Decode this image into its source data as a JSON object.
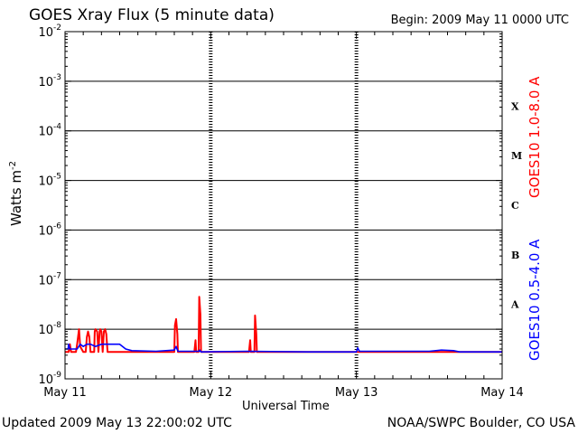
{
  "header": {
    "title": "GOES Xray Flux (5 minute data)",
    "begin": "Begin:  2009 May 11 0000 UTC"
  },
  "footer": {
    "updated": "Updated 2009 May 13 22:00:02 UTC",
    "credit": "NOAA/SWPC Boulder, CO USA"
  },
  "colors": {
    "long": "#ff0000",
    "short": "#0000ff",
    "axis": "#000000"
  },
  "chart_data": {
    "type": "line",
    "title": "GOES Xray Flux (5 minute data)",
    "xlabel": "Universal Time",
    "ylabel": "Watts m",
    "ylabel_sup": "-2",
    "y_scale": "log",
    "ylim": [
      1e-09,
      0.01
    ],
    "xlim": [
      0,
      72
    ],
    "x_unit": "hours since 2009 May 11 0000 UTC",
    "x_ticks": [
      {
        "x": 0,
        "label": "May 11"
      },
      {
        "x": 24,
        "label": "May 12"
      },
      {
        "x": 48,
        "label": "May 13"
      },
      {
        "x": 72,
        "label": "May 14"
      }
    ],
    "y_ticks": [
      {
        "exp": -9,
        "label": "10",
        "sup": "-9"
      },
      {
        "exp": -8,
        "label": "10",
        "sup": "-8"
      },
      {
        "exp": -7,
        "label": "10",
        "sup": "-7"
      },
      {
        "exp": -6,
        "label": "10",
        "sup": "-6"
      },
      {
        "exp": -5,
        "label": "10",
        "sup": "-5"
      },
      {
        "exp": -4,
        "label": "10",
        "sup": "-4"
      },
      {
        "exp": -3,
        "label": "10",
        "sup": "-3"
      },
      {
        "exp": -2,
        "label": "10",
        "sup": "-2"
      }
    ],
    "flare_classes": [
      {
        "label": "A",
        "exp": -7.5
      },
      {
        "label": "B",
        "exp": -6.5
      },
      {
        "label": "C",
        "exp": -5.5
      },
      {
        "label": "M",
        "exp": -4.5
      },
      {
        "label": "X",
        "exp": -3.5
      }
    ],
    "grid": "horizontal lines at each decade from 1e-8 to 1e-3",
    "series": [
      {
        "name": "GOES10 1.0-8.0 A",
        "color": "#ff0000",
        "points": [
          [
            0.0,
            3.5e-09
          ],
          [
            0.6,
            3.5e-09
          ],
          [
            0.8,
            5e-09
          ],
          [
            1.0,
            3.5e-09
          ],
          [
            1.8,
            3.5e-09
          ],
          [
            2.0,
            5e-09
          ],
          [
            2.3,
            1e-08
          ],
          [
            2.5,
            4.5e-09
          ],
          [
            3.0,
            3.5e-09
          ],
          [
            3.4,
            3.5e-09
          ],
          [
            3.6,
            7e-09
          ],
          [
            3.8,
            9e-09
          ],
          [
            4.0,
            7e-09
          ],
          [
            4.2,
            3.5e-09
          ],
          [
            4.8,
            3.5e-09
          ],
          [
            4.9,
            9e-09
          ],
          [
            5.0,
            1e-08
          ],
          [
            5.3,
            9e-09
          ],
          [
            5.5,
            3.5e-09
          ],
          [
            5.7,
            9e-09
          ],
          [
            5.8,
            1e-08
          ],
          [
            6.0,
            9e-09
          ],
          [
            6.2,
            3.5e-09
          ],
          [
            6.4,
            9e-09
          ],
          [
            6.6,
            1e-08
          ],
          [
            6.8,
            8e-09
          ],
          [
            7.0,
            3.5e-09
          ],
          [
            18.0,
            3.5e-09
          ],
          [
            18.1,
            1.2e-08
          ],
          [
            18.3,
            1.6e-08
          ],
          [
            18.5,
            8e-09
          ],
          [
            18.6,
            3.5e-09
          ],
          [
            21.0,
            3.5e-09
          ],
          [
            21.3,
            3.5e-09
          ],
          [
            21.5,
            6e-09
          ],
          [
            21.6,
            3.5e-09
          ],
          [
            22.0,
            3.5e-09
          ],
          [
            22.1,
            4.5e-08
          ],
          [
            22.3,
            2e-08
          ],
          [
            22.4,
            3.5e-09
          ],
          [
            22.7,
            3.5e-09
          ],
          [
            23.2,
            3.5e-09
          ],
          [
            30.3,
            3.5e-09
          ],
          [
            30.5,
            6e-09
          ],
          [
            30.6,
            3.5e-09
          ],
          [
            31.2,
            3.5e-09
          ],
          [
            31.3,
            1.9e-08
          ],
          [
            31.5,
            8e-09
          ],
          [
            31.6,
            3.5e-09
          ],
          [
            72.0,
            3.5e-09
          ]
        ]
      },
      {
        "name": "GOES10 0.5-4.0 A",
        "color": "#0000ff",
        "points": [
          [
            0.0,
            4e-09
          ],
          [
            0.5,
            4e-09
          ],
          [
            0.6,
            5e-09
          ],
          [
            0.8,
            4e-09
          ],
          [
            2.0,
            4e-09
          ],
          [
            2.5,
            5e-09
          ],
          [
            3.0,
            4.5e-09
          ],
          [
            3.6,
            5e-09
          ],
          [
            4.2,
            5e-09
          ],
          [
            5.0,
            4.5e-09
          ],
          [
            6.0,
            5e-09
          ],
          [
            7.5,
            5e-09
          ],
          [
            9.0,
            5e-09
          ],
          [
            10.0,
            4e-09
          ],
          [
            11.0,
            3.7e-09
          ],
          [
            15.0,
            3.6e-09
          ],
          [
            18.0,
            3.8e-09
          ],
          [
            18.3,
            4.5e-09
          ],
          [
            18.6,
            3.6e-09
          ],
          [
            22.1,
            3.6e-09
          ],
          [
            22.2,
            3.8e-09
          ],
          [
            22.4,
            3.5e-09
          ],
          [
            30.0,
            3.6e-09
          ],
          [
            40.0,
            3.5e-09
          ],
          [
            48.0,
            3.5e-09
          ],
          [
            48.2,
            4.2e-09
          ],
          [
            48.5,
            3.6e-09
          ],
          [
            60.0,
            3.6e-09
          ],
          [
            62.0,
            3.8e-09
          ],
          [
            64.0,
            3.7e-09
          ],
          [
            65.0,
            3.5e-09
          ],
          [
            72.0,
            3.5e-09
          ]
        ]
      }
    ]
  }
}
